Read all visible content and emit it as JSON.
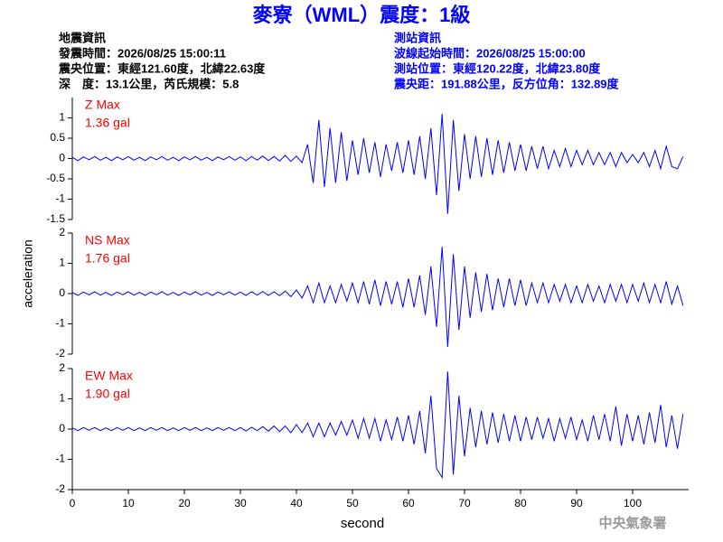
{
  "header": {
    "title": "麥寮（WML）震度：1級",
    "left": [
      "地震資訊",
      "發震時間：2026/08/25 15:00:11",
      "震央位置：東經121.60度，北緯22.63度",
      "深　度：13.1公里，芮氏規模：5.8"
    ],
    "right": [
      "測站資訊",
      "波線起始時間：2026/08/25 15:00:00",
      "測站位置：東經120.22度，北緯23.80度",
      "震央距：191.88公里，反方位角：132.89度"
    ]
  },
  "y_label": "acceleration",
  "footer": "中央氣象署",
  "chart_data": [
    {
      "type": "line",
      "label": "Z Max",
      "max_label": "1.36 gal",
      "color": "#0000ff",
      "ylim": [
        -1.5,
        1.5
      ],
      "yticks": [
        -1.5,
        -1,
        -0.5,
        0,
        0.5,
        1
      ],
      "xlim": [
        0,
        110
      ],
      "x": [
        0,
        1,
        2,
        3,
        4,
        5,
        6,
        7,
        8,
        9,
        10,
        11,
        12,
        13,
        14,
        15,
        16,
        17,
        18,
        19,
        20,
        21,
        22,
        23,
        24,
        25,
        26,
        27,
        28,
        29,
        30,
        31,
        32,
        33,
        34,
        35,
        36,
        37,
        38,
        39,
        40,
        41,
        42,
        43,
        44,
        45,
        46,
        47,
        48,
        49,
        50,
        51,
        52,
        53,
        54,
        55,
        56,
        57,
        58,
        59,
        60,
        61,
        62,
        63,
        64,
        65,
        66,
        67,
        68,
        69,
        70,
        71,
        72,
        73,
        74,
        75,
        76,
        77,
        78,
        79,
        80,
        81,
        82,
        83,
        84,
        85,
        86,
        87,
        88,
        89,
        90,
        91,
        92,
        93,
        94,
        95,
        96,
        97,
        98,
        99,
        100,
        101,
        102,
        103,
        104,
        105,
        106,
        107,
        108,
        109
      ],
      "values": [
        0.03,
        -0.05,
        0.04,
        -0.03,
        0.05,
        -0.04,
        0.03,
        -0.05,
        0.04,
        -0.03,
        0.05,
        -0.04,
        0.03,
        -0.05,
        0.04,
        -0.03,
        0.05,
        -0.04,
        0.03,
        -0.05,
        0.04,
        -0.03,
        0.05,
        -0.04,
        0.03,
        -0.05,
        0.04,
        -0.03,
        0.05,
        -0.04,
        0.04,
        -0.05,
        0.05,
        -0.04,
        0.06,
        -0.05,
        0.05,
        -0.06,
        0.08,
        -0.07,
        0.06,
        -0.1,
        0.35,
        -0.6,
        0.95,
        -0.7,
        0.75,
        -0.6,
        0.65,
        -0.55,
        0.45,
        -0.4,
        0.5,
        -0.35,
        0.4,
        -0.45,
        0.35,
        -0.3,
        0.4,
        -0.35,
        0.45,
        -0.4,
        0.55,
        -0.5,
        0.75,
        -0.9,
        1.1,
        -1.36,
        0.95,
        -0.8,
        0.6,
        -0.5,
        0.55,
        -0.45,
        0.5,
        -0.4,
        0.45,
        -0.35,
        0.4,
        -0.3,
        0.35,
        -0.3,
        0.3,
        -0.25,
        0.3,
        -0.25,
        0.2,
        -0.2,
        0.25,
        -0.2,
        0.2,
        -0.15,
        0.2,
        -0.15,
        0.15,
        -0.15,
        0.15,
        -0.2,
        0.15,
        -0.1,
        0.1,
        -0.1,
        0.15,
        -0.2,
        0.2,
        -0.25,
        0.3,
        -0.2,
        -0.25,
        0.05
      ]
    },
    {
      "type": "line",
      "label": "NS Max",
      "max_label": "1.76 gal",
      "color": "#0000ff",
      "ylim": [
        -2,
        2
      ],
      "yticks": [
        -2,
        -1,
        0,
        1,
        2
      ],
      "xlim": [
        0,
        110
      ],
      "x": [
        0,
        1,
        2,
        3,
        4,
        5,
        6,
        7,
        8,
        9,
        10,
        11,
        12,
        13,
        14,
        15,
        16,
        17,
        18,
        19,
        20,
        21,
        22,
        23,
        24,
        25,
        26,
        27,
        28,
        29,
        30,
        31,
        32,
        33,
        34,
        35,
        36,
        37,
        38,
        39,
        40,
        41,
        42,
        43,
        44,
        45,
        46,
        47,
        48,
        49,
        50,
        51,
        52,
        53,
        54,
        55,
        56,
        57,
        58,
        59,
        60,
        61,
        62,
        63,
        64,
        65,
        66,
        67,
        68,
        69,
        70,
        71,
        72,
        73,
        74,
        75,
        76,
        77,
        78,
        79,
        80,
        81,
        82,
        83,
        84,
        85,
        86,
        87,
        88,
        89,
        90,
        91,
        92,
        93,
        94,
        95,
        96,
        97,
        98,
        99,
        100,
        101,
        102,
        103,
        104,
        105,
        106,
        107,
        108,
        109
      ],
      "values": [
        0.04,
        -0.06,
        0.05,
        -0.04,
        0.06,
        -0.05,
        0.04,
        -0.06,
        0.05,
        -0.04,
        0.06,
        -0.05,
        0.04,
        -0.06,
        0.05,
        -0.04,
        0.06,
        -0.05,
        0.04,
        -0.06,
        0.05,
        -0.04,
        0.06,
        -0.05,
        0.04,
        -0.06,
        0.05,
        -0.04,
        0.06,
        -0.05,
        0.05,
        -0.06,
        0.06,
        -0.05,
        0.07,
        -0.06,
        0.06,
        -0.07,
        0.08,
        -0.1,
        0.12,
        -0.15,
        0.25,
        -0.3,
        0.35,
        -0.3,
        0.25,
        -0.3,
        0.3,
        -0.25,
        0.35,
        -0.3,
        0.4,
        -0.35,
        0.45,
        -0.4,
        0.4,
        -0.35,
        0.4,
        -0.45,
        0.5,
        -0.45,
        0.6,
        -0.7,
        0.9,
        -1.1,
        1.55,
        -1.76,
        1.3,
        -1.2,
        0.9,
        -0.8,
        0.7,
        -0.6,
        0.65,
        -0.55,
        0.5,
        -0.45,
        0.5,
        -0.4,
        0.45,
        -0.4,
        0.35,
        -0.3,
        0.35,
        -0.3,
        0.3,
        -0.25,
        0.3,
        -0.3,
        0.25,
        -0.3,
        0.3,
        -0.25,
        0.25,
        -0.3,
        0.3,
        -0.25,
        0.3,
        -0.3,
        0.3,
        -0.25,
        0.35,
        -0.3,
        0.3,
        -0.3,
        0.4,
        -0.35,
        0.25,
        -0.4
      ]
    },
    {
      "type": "line",
      "label": "EW Max",
      "max_label": "1.90 gal",
      "color": "#0000ff",
      "ylim": [
        -2,
        2
      ],
      "yticks": [
        -2,
        -1,
        0,
        1,
        2
      ],
      "xlim": [
        0,
        110
      ],
      "xticks": [
        0,
        10,
        20,
        30,
        40,
        50,
        60,
        70,
        80,
        90,
        100
      ],
      "x_label": "second",
      "x": [
        0,
        1,
        2,
        3,
        4,
        5,
        6,
        7,
        8,
        9,
        10,
        11,
        12,
        13,
        14,
        15,
        16,
        17,
        18,
        19,
        20,
        21,
        22,
        23,
        24,
        25,
        26,
        27,
        28,
        29,
        30,
        31,
        32,
        33,
        34,
        35,
        36,
        37,
        38,
        39,
        40,
        41,
        42,
        43,
        44,
        45,
        46,
        47,
        48,
        49,
        50,
        51,
        52,
        53,
        54,
        55,
        56,
        57,
        58,
        59,
        60,
        61,
        62,
        63,
        64,
        65,
        66,
        67,
        68,
        69,
        70,
        71,
        72,
        73,
        74,
        75,
        76,
        77,
        78,
        79,
        80,
        81,
        82,
        83,
        84,
        85,
        86,
        87,
        88,
        89,
        90,
        91,
        92,
        93,
        94,
        95,
        96,
        97,
        98,
        99,
        100,
        101,
        102,
        103,
        104,
        105,
        106,
        107,
        108,
        109
      ],
      "values": [
        0.04,
        -0.05,
        0.05,
        -0.04,
        0.05,
        -0.05,
        0.04,
        -0.05,
        0.05,
        -0.04,
        0.05,
        -0.05,
        0.04,
        -0.05,
        0.05,
        -0.04,
        0.05,
        -0.05,
        0.04,
        -0.05,
        0.05,
        -0.04,
        0.05,
        -0.05,
        0.04,
        -0.05,
        0.05,
        -0.04,
        0.05,
        -0.05,
        0.05,
        -0.06,
        0.06,
        -0.05,
        0.08,
        -0.07,
        0.1,
        -0.08,
        0.1,
        -0.12,
        0.15,
        -0.12,
        0.2,
        -0.25,
        0.2,
        -0.25,
        0.2,
        -0.2,
        0.25,
        -0.2,
        0.3,
        -0.3,
        0.35,
        -0.3,
        0.35,
        -0.4,
        0.3,
        -0.35,
        0.4,
        -0.4,
        0.45,
        -0.5,
        0.6,
        -0.8,
        1.1,
        -1.3,
        -1.6,
        1.9,
        -1.5,
        1.1,
        -0.9,
        0.7,
        -0.6,
        0.6,
        -0.5,
        0.55,
        -0.45,
        0.5,
        -0.4,
        0.45,
        -0.4,
        0.4,
        -0.35,
        0.4,
        -0.3,
        0.35,
        -0.4,
        0.35,
        -0.3,
        0.4,
        -0.35,
        0.3,
        -0.4,
        0.45,
        -0.35,
        0.5,
        -0.4,
        0.75,
        -0.55,
        0.5,
        -0.4,
        0.45,
        -0.5,
        0.55,
        -0.45,
        0.8,
        -0.6,
        0.45,
        -0.65,
        0.5
      ]
    }
  ]
}
